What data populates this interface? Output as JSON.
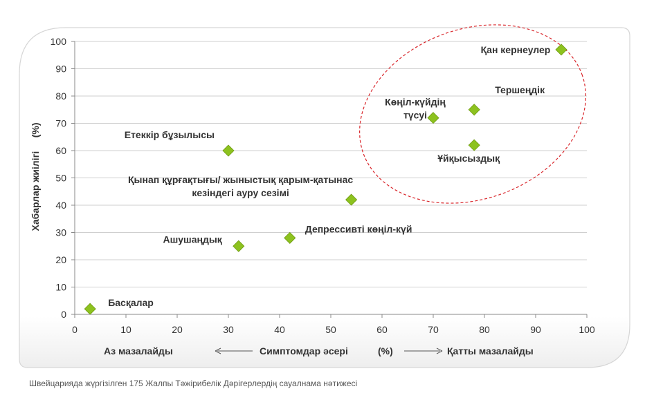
{
  "chart_data": {
    "type": "scatter",
    "ylabel": "Хабарлар жиілігі     (%)",
    "xlim": [
      0,
      100
    ],
    "ylim": [
      0,
      100
    ],
    "xticks": [
      0,
      10,
      20,
      30,
      40,
      50,
      60,
      70,
      80,
      90,
      100
    ],
    "yticks": [
      0,
      10,
      20,
      30,
      40,
      50,
      60,
      70,
      80,
      90,
      100
    ],
    "grid": "horizontal",
    "marker_color": "#8dc21f",
    "highlight_color": "#d9262b",
    "x_axis_caption": {
      "left": "Аз мазалайды",
      "center": "Симптомдар әсері",
      "unit": "(%)",
      "right": "Қатты мазалайды"
    },
    "points": [
      {
        "label": "Басқалар",
        "x": 3,
        "y": 2
      },
      {
        "label": "Ашушаңдық",
        "x": 32,
        "y": 25
      },
      {
        "label": "Депрессивті көңіл-күй",
        "x": 42,
        "y": 28
      },
      {
        "label": "Қынап құрғақтығы/ жыныстық қарым-қатынас\nкезіндегі ауру сезімі",
        "x": 54,
        "y": 42
      },
      {
        "label": "Етеккір бұзылысы",
        "x": 30,
        "y": 60
      },
      {
        "label": "Көңіл-күйдің\nтүсуі",
        "x": 70,
        "y": 72
      },
      {
        "label": "Тершеңдік",
        "x": 78,
        "y": 75
      },
      {
        "label": "Ұйқысыздық",
        "x": 78,
        "y": 62
      },
      {
        "label": "Қан кернеулер",
        "x": 95,
        "y": 97
      }
    ]
  },
  "footer": {
    "source_note": "Швейцарияда жүргізілген 175 Жалпы Тәжірибелік Дәрігерлердің сауалнама нәтижесі"
  }
}
